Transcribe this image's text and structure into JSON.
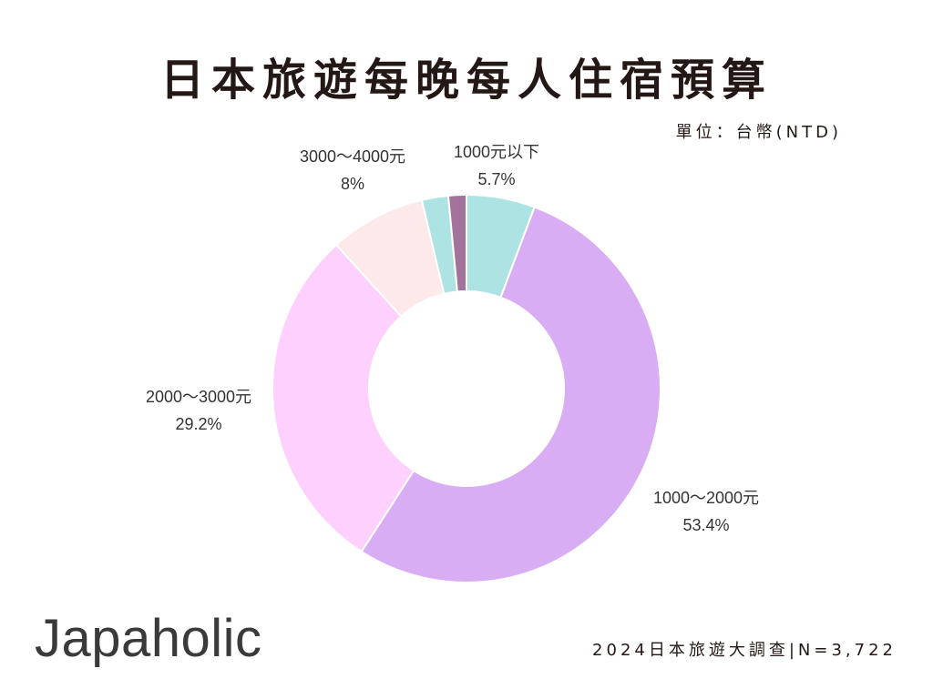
{
  "title": "日本旅遊每晚每人住宿預算",
  "unit": "單位：台幣(NTD)",
  "logo": "Japaholic",
  "source": "2024日本旅遊大調查|N=3,722",
  "chart_data": {
    "type": "pie",
    "style": "donut",
    "title": "日本旅遊每晚每人住宿預算",
    "unit": "單位：台幣(NTD)",
    "slices": [
      {
        "label": "1000元以下",
        "value": 5.7,
        "value_label": "5.7%",
        "color": "#ade4e3"
      },
      {
        "label": "1000～2000元",
        "value": 53.4,
        "value_label": "53.4%",
        "color": "#d9adf4"
      },
      {
        "label": "2000～3000元",
        "value": 29.2,
        "value_label": "29.2%",
        "color": "#fdd0fd"
      },
      {
        "label": "3000～4000元",
        "value": 8,
        "value_label": "8%",
        "color": "#fde8ea"
      },
      {
        "label": "",
        "value": 2.2,
        "value_label": "",
        "color": "#ade4e3"
      },
      {
        "label": "",
        "value": 1.5,
        "value_label": "",
        "color": "#a2739b"
      }
    ]
  }
}
